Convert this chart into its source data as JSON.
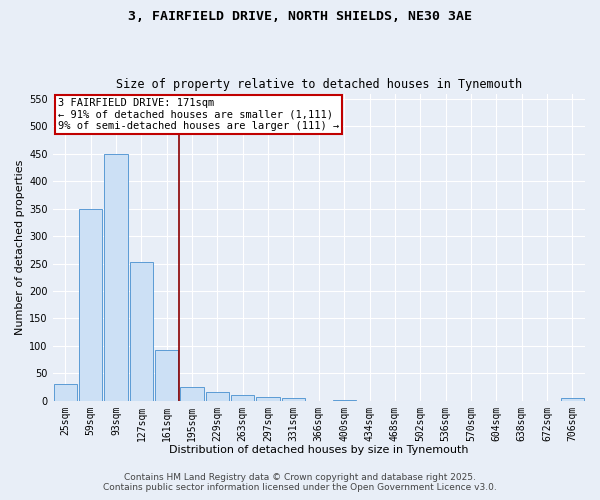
{
  "title1": "3, FAIRFIELD DRIVE, NORTH SHIELDS, NE30 3AE",
  "title2": "Size of property relative to detached houses in Tynemouth",
  "xlabel": "Distribution of detached houses by size in Tynemouth",
  "ylabel": "Number of detached properties",
  "bar_labels": [
    "25sqm",
    "59sqm",
    "93sqm",
    "127sqm",
    "161sqm",
    "195sqm",
    "229sqm",
    "263sqm",
    "297sqm",
    "331sqm",
    "366sqm",
    "400sqm",
    "434sqm",
    "468sqm",
    "502sqm",
    "536sqm",
    "570sqm",
    "604sqm",
    "638sqm",
    "672sqm",
    "706sqm"
  ],
  "bar_heights": [
    30,
    350,
    450,
    253,
    93,
    25,
    15,
    10,
    6,
    5,
    0,
    2,
    0,
    0,
    0,
    0,
    0,
    0,
    0,
    0,
    5
  ],
  "bar_color": "#cce0f5",
  "bar_edgecolor": "#5b9bd5",
  "vline_color": "#8b0000",
  "annotation_text": "3 FAIRFIELD DRIVE: 171sqm\n← 91% of detached houses are smaller (1,111)\n9% of semi-detached houses are larger (111) →",
  "annotation_fontsize": 7.5,
  "annotation_box_color": "#c00000",
  "annotation_bg": "white",
  "ylim": [
    0,
    560
  ],
  "yticks": [
    0,
    50,
    100,
    150,
    200,
    250,
    300,
    350,
    400,
    450,
    500,
    550
  ],
  "background_color": "#e8eef7",
  "grid_color": "white",
  "footer1": "Contains HM Land Registry data © Crown copyright and database right 2025.",
  "footer2": "Contains public sector information licensed under the Open Government Licence v3.0.",
  "title1_fontsize": 9.5,
  "title2_fontsize": 8.5,
  "xlabel_fontsize": 8,
  "ylabel_fontsize": 8,
  "tick_fontsize": 7,
  "footer_fontsize": 6.5
}
